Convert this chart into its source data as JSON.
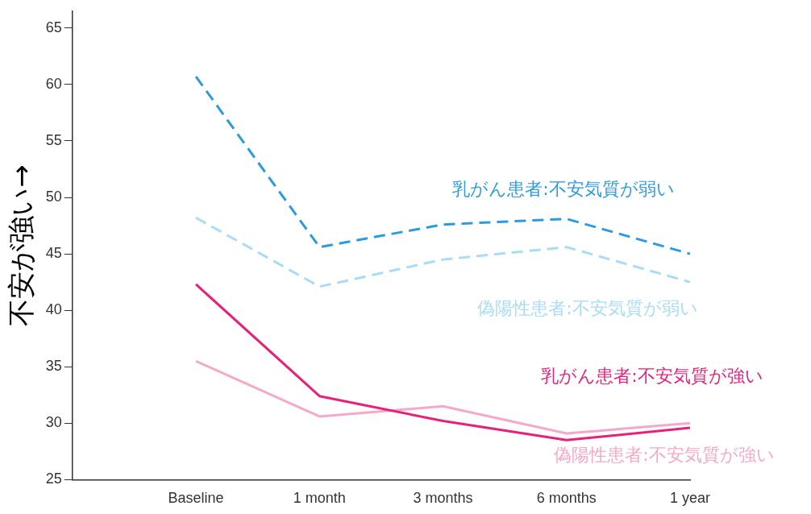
{
  "chart_data": {
    "type": "line",
    "ylabel": "不安が強い→",
    "categories": [
      null,
      "Baseline",
      "1 month",
      "3 months",
      "6 months",
      "1 year"
    ],
    "ylim": [
      25,
      66.5
    ],
    "yticks": [
      25,
      30,
      35,
      40,
      45,
      50,
      55,
      60,
      65
    ],
    "grid": false,
    "legend": false,
    "marker": "none",
    "series": [
      {
        "name": "乳がん患者:不安気質が弱い",
        "color": "#2b9be0",
        "line_style": "dashed",
        "values": [
          null,
          60.7,
          45.6,
          47.6,
          48.1,
          45.0
        ]
      },
      {
        "name": "偽陽性患者:不安気質が弱い",
        "color": "#a9dcf5",
        "line_style": "dashed",
        "values": [
          null,
          48.2,
          42.1,
          44.5,
          45.6,
          42.5
        ]
      },
      {
        "name": "乳がん患者:不安気質が強い",
        "color": "#e8207a",
        "line_style": "solid",
        "values": [
          null,
          42.3,
          32.4,
          30.2,
          28.5,
          29.6
        ]
      },
      {
        "name": "偽陽性患者:不安気質が強い",
        "color": "#f5a8c8",
        "line_style": "solid",
        "values": [
          null,
          35.5,
          30.6,
          31.5,
          29.1,
          30.0
        ]
      }
    ]
  }
}
